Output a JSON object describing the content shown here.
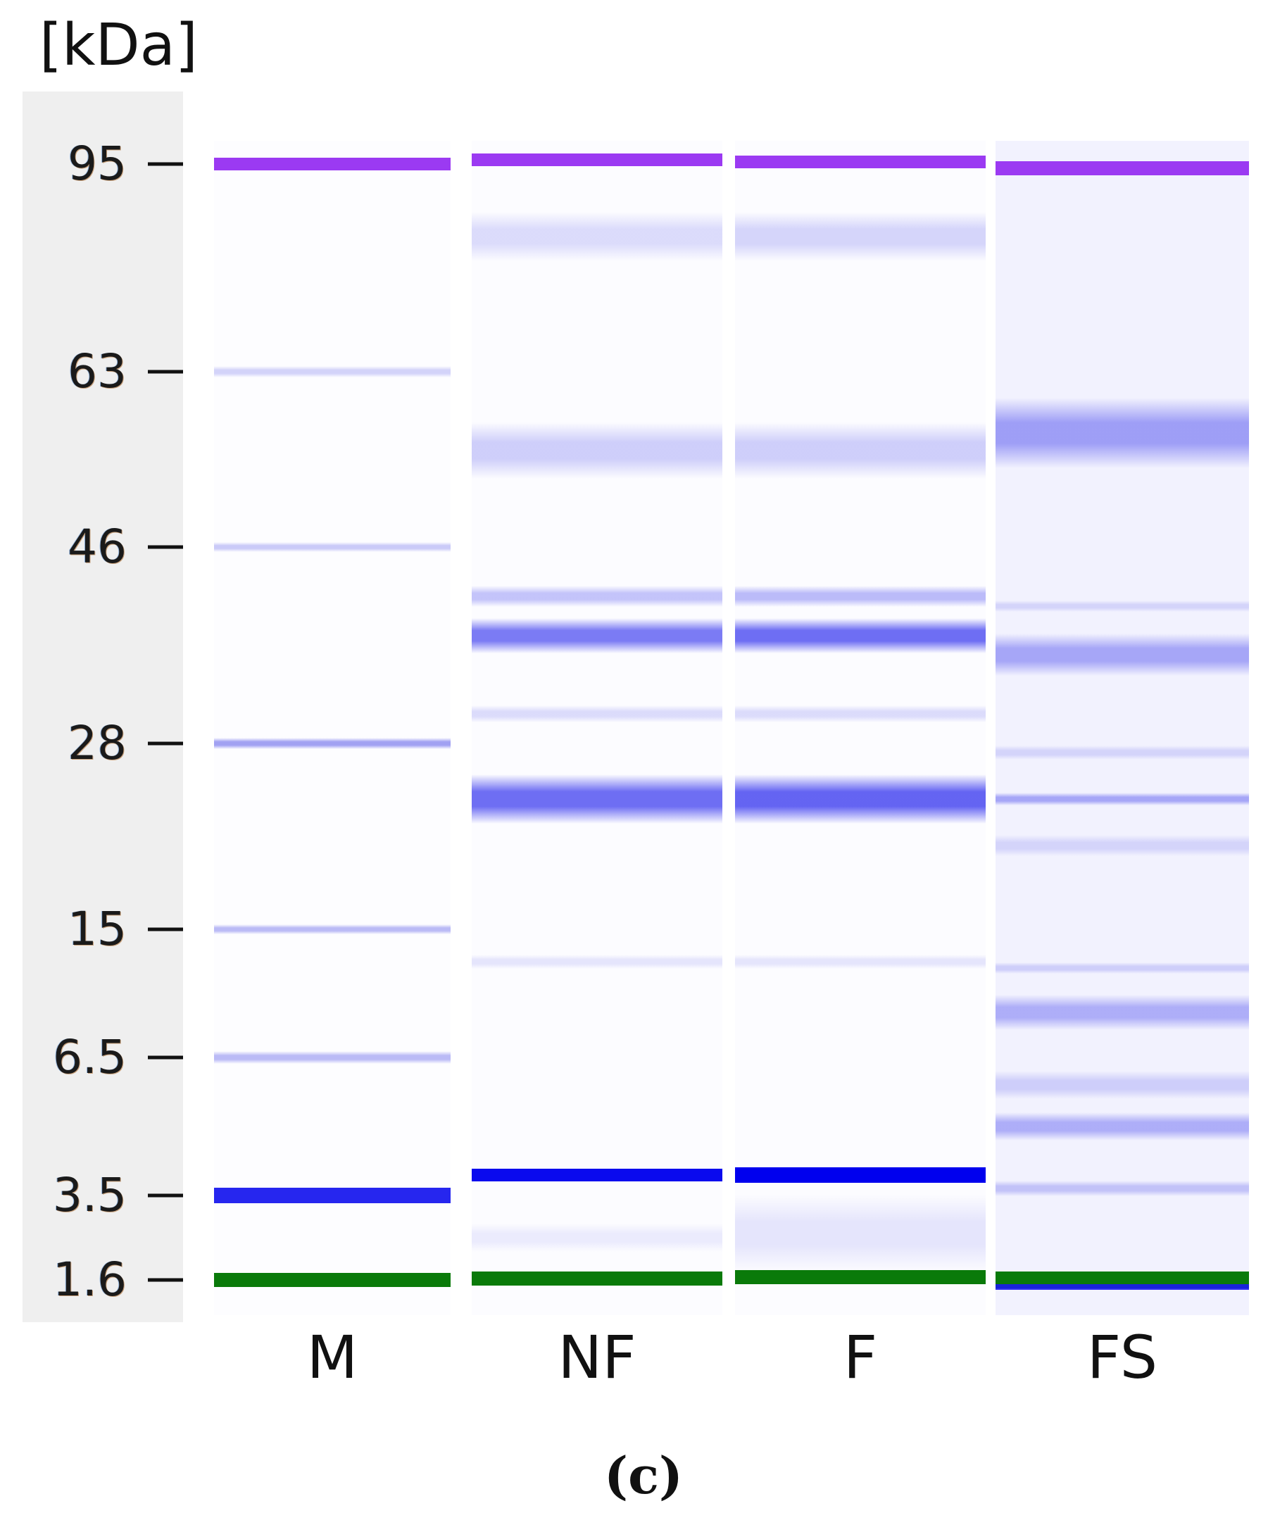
{
  "unit_label": "[kDa]",
  "panel_letter": "(c)",
  "markers": [
    "95",
    "63",
    "46",
    "28",
    "15",
    "6.5",
    "3.5",
    "1.6"
  ],
  "lanes": [
    {
      "label": "M",
      "background": "#fdfdff",
      "bands": [
        {
          "pos": 0.0,
          "color": "#9b3af2",
          "alpha": 1.0,
          "h": 18
        },
        {
          "pos": 1.0,
          "color": "#5555e8",
          "alpha": 0.25,
          "h": 16
        },
        {
          "pos": 2.0,
          "color": "#5555e8",
          "alpha": 0.3,
          "h": 14
        },
        {
          "pos": 3.0,
          "color": "#5555e8",
          "alpha": 0.55,
          "h": 16
        },
        {
          "pos": 4.0,
          "color": "#5555e8",
          "alpha": 0.4,
          "h": 14
        },
        {
          "pos": 5.0,
          "color": "#5555e8",
          "alpha": 0.4,
          "h": 18
        },
        {
          "pos": 6.0,
          "color": "#1a1aee",
          "alpha": 0.95,
          "h": 22
        },
        {
          "pos": 7.0,
          "color": "#0a7a0a",
          "alpha": 1.0,
          "h": 20
        }
      ]
    },
    {
      "label": "NF",
      "background": "#fcfcff",
      "bands": [
        {
          "pos": -0.02,
          "color": "#9b3af2",
          "alpha": 1.0,
          "h": 18
        },
        {
          "pos": 0.35,
          "color": "#7a7af0",
          "alpha": 0.25,
          "h": 70
        },
        {
          "pos": 1.45,
          "color": "#7a7af0",
          "alpha": 0.35,
          "h": 80
        },
        {
          "pos": 2.25,
          "color": "#5a5af0",
          "alpha": 0.35,
          "h": 30
        },
        {
          "pos": 2.45,
          "color": "#5050f0",
          "alpha": 0.75,
          "h": 50
        },
        {
          "pos": 2.85,
          "color": "#7a7af0",
          "alpha": 0.25,
          "h": 24
        },
        {
          "pos": 3.3,
          "color": "#4a4af0",
          "alpha": 0.8,
          "h": 70
        },
        {
          "pos": 4.25,
          "color": "#8a8af0",
          "alpha": 0.2,
          "h": 20
        },
        {
          "pos": 5.85,
          "color": "#0a0aee",
          "alpha": 1.0,
          "h": 18
        },
        {
          "pos": 6.5,
          "color": "#8a8af0",
          "alpha": 0.15,
          "h": 40
        },
        {
          "pos": 6.98,
          "color": "#0a7a0a",
          "alpha": 1.0,
          "h": 20
        }
      ]
    },
    {
      "label": "F",
      "background": "#fcfcff",
      "bands": [
        {
          "pos": -0.01,
          "color": "#9b3af2",
          "alpha": 1.0,
          "h": 18
        },
        {
          "pos": 0.35,
          "color": "#7a7af0",
          "alpha": 0.3,
          "h": 70
        },
        {
          "pos": 1.45,
          "color": "#7a7af0",
          "alpha": 0.35,
          "h": 80
        },
        {
          "pos": 2.25,
          "color": "#5a5af0",
          "alpha": 0.4,
          "h": 30
        },
        {
          "pos": 2.45,
          "color": "#4a4af0",
          "alpha": 0.8,
          "h": 50
        },
        {
          "pos": 2.85,
          "color": "#7a7af0",
          "alpha": 0.25,
          "h": 24
        },
        {
          "pos": 3.3,
          "color": "#4a4af0",
          "alpha": 0.85,
          "h": 70
        },
        {
          "pos": 4.25,
          "color": "#8a8af0",
          "alpha": 0.2,
          "h": 20
        },
        {
          "pos": 5.85,
          "color": "#0000ee",
          "alpha": 1.0,
          "h": 22
        },
        {
          "pos": 6.45,
          "color": "#8a8af0",
          "alpha": 0.2,
          "h": 110
        },
        {
          "pos": 6.97,
          "color": "#0a7a0a",
          "alpha": 1.0,
          "h": 20
        }
      ]
    },
    {
      "label": "FS",
      "background": "#f2f2fe",
      "bands": [
        {
          "pos": 0.02,
          "color": "#9b3af2",
          "alpha": 1.0,
          "h": 20
        },
        {
          "pos": 1.35,
          "color": "#5a5af0",
          "alpha": 0.55,
          "h": 100
        },
        {
          "pos": 2.3,
          "color": "#7a7af0",
          "alpha": 0.25,
          "h": 16
        },
        {
          "pos": 2.55,
          "color": "#5a5af0",
          "alpha": 0.5,
          "h": 60
        },
        {
          "pos": 3.05,
          "color": "#7a7af0",
          "alpha": 0.25,
          "h": 20
        },
        {
          "pos": 3.3,
          "color": "#5a5af0",
          "alpha": 0.5,
          "h": 18
        },
        {
          "pos": 3.55,
          "color": "#7a7af0",
          "alpha": 0.25,
          "h": 30
        },
        {
          "pos": 4.3,
          "color": "#7a7af0",
          "alpha": 0.3,
          "h": 16
        },
        {
          "pos": 4.65,
          "color": "#5a5af0",
          "alpha": 0.45,
          "h": 50
        },
        {
          "pos": 5.2,
          "color": "#7a7af0",
          "alpha": 0.3,
          "h": 40
        },
        {
          "pos": 5.5,
          "color": "#5a5af0",
          "alpha": 0.45,
          "h": 40
        },
        {
          "pos": 5.95,
          "color": "#7a7af0",
          "alpha": 0.4,
          "h": 22
        },
        {
          "pos": 7.0,
          "color": "#0a7a0a",
          "alpha": 1.0,
          "h": 24
        },
        {
          "pos": 7.08,
          "color": "#1a1aee",
          "alpha": 0.9,
          "h": 8
        }
      ]
    }
  ]
}
